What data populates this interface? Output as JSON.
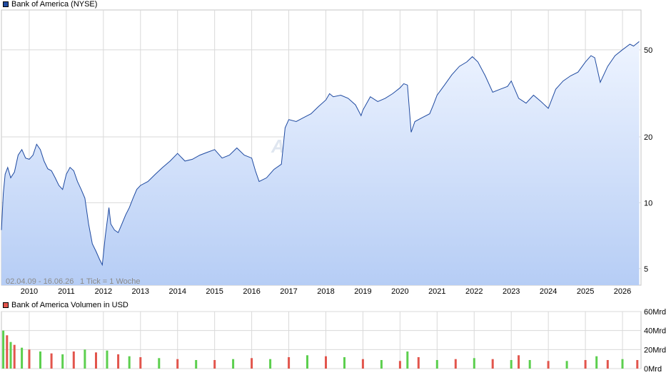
{
  "colors": {
    "price_line": "#1f4aa0",
    "area_top": "#eef4ff",
    "area_bottom": "#b6cdf5",
    "grid": "#d9d9d9",
    "frame": "#c4c4c4",
    "volume_up": "#5ccf4e",
    "volume_down": "#e2554c",
    "price_swatch": "#1f4aa0",
    "volume_swatch": "#e2554c"
  },
  "legend": {
    "price": "Bank of America (NYSE)",
    "volume": "Bank of America Volumen in USD"
  },
  "footer": {
    "period": "02.04.09 - 16.06.26",
    "tick_info": "1 Tick = 1 Woche"
  },
  "watermark": "ARIVA.DE",
  "chart_data": [
    {
      "type": "line",
      "scale": "log",
      "ylim": [
        4.2,
        76
      ],
      "xlim": [
        2009.25,
        2026.5
      ],
      "yticks": [
        5,
        10,
        20,
        50
      ],
      "ytick_labels": [
        "5",
        "10",
        "20",
        "50"
      ],
      "xticks": [
        2010,
        2011,
        2012,
        2013,
        2014,
        2015,
        2016,
        2017,
        2018,
        2019,
        2020,
        2021,
        2022,
        2023,
        2024,
        2025,
        2026
      ],
      "xtick_labels": [
        "2010",
        "2011",
        "2012",
        "2013",
        "2014",
        "2015",
        "2016",
        "2017",
        "2018",
        "2019",
        "2020",
        "2021",
        "2022",
        "2023",
        "2024",
        "2025",
        "2026"
      ],
      "series": [
        {
          "x": [
            2009.25,
            2009.3,
            2009.35,
            2009.42,
            2009.5,
            2009.6,
            2009.7,
            2009.8,
            2009.9,
            2010.0,
            2010.1,
            2010.2,
            2010.3,
            2010.4,
            2010.5,
            2010.6,
            2010.7,
            2010.8,
            2010.9,
            2011.0,
            2011.1,
            2011.2,
            2011.3,
            2011.4,
            2011.5,
            2011.6,
            2011.7,
            2011.8,
            2011.9,
            2011.97,
            2012.05,
            2012.15,
            2012.2,
            2012.3,
            2012.4,
            2012.5,
            2012.6,
            2012.7,
            2012.8,
            2012.9,
            2013.0,
            2013.2,
            2013.4,
            2013.6,
            2013.8,
            2014.0,
            2014.2,
            2014.4,
            2014.6,
            2014.8,
            2015.0,
            2015.2,
            2015.4,
            2015.6,
            2015.8,
            2016.0,
            2016.1,
            2016.2,
            2016.4,
            2016.6,
            2016.8,
            2016.9,
            2017.0,
            2017.2,
            2017.4,
            2017.6,
            2017.8,
            2018.0,
            2018.1,
            2018.2,
            2018.4,
            2018.6,
            2018.8,
            2018.95,
            2019.0,
            2019.2,
            2019.4,
            2019.6,
            2019.8,
            2020.0,
            2020.1,
            2020.2,
            2020.3,
            2020.4,
            2020.6,
            2020.8,
            2020.9,
            2021.0,
            2021.2,
            2021.4,
            2021.6,
            2021.8,
            2021.95,
            2022.1,
            2022.3,
            2022.5,
            2022.7,
            2022.9,
            2023.0,
            2023.2,
            2023.4,
            2023.6,
            2023.8,
            2024.0,
            2024.2,
            2024.4,
            2024.6,
            2024.8,
            2025.0,
            2025.15,
            2025.25,
            2025.4,
            2025.6,
            2025.8,
            2026.0,
            2026.2,
            2026.3,
            2026.45
          ],
          "y": [
            7.5,
            11.0,
            13.5,
            14.5,
            13.0,
            13.8,
            16.5,
            17.5,
            16.0,
            15.8,
            16.5,
            18.5,
            17.5,
            15.5,
            14.3,
            14.0,
            13.0,
            12.0,
            11.5,
            13.5,
            14.5,
            14.0,
            12.5,
            11.5,
            10.5,
            8.0,
            6.5,
            6.0,
            5.5,
            5.2,
            7.0,
            9.5,
            8.0,
            7.5,
            7.3,
            8.0,
            8.8,
            9.5,
            10.5,
            11.5,
            12.0,
            12.5,
            13.5,
            14.5,
            15.5,
            16.8,
            15.5,
            15.8,
            16.5,
            17.0,
            17.5,
            16.0,
            16.5,
            17.8,
            16.5,
            16.0,
            14.0,
            12.5,
            13.0,
            14.2,
            15.0,
            22.0,
            24.0,
            23.5,
            24.5,
            25.5,
            27.5,
            29.5,
            31.5,
            30.5,
            31.0,
            30.0,
            28.0,
            25.0,
            26.5,
            30.5,
            29.0,
            30.0,
            31.5,
            33.5,
            35.0,
            34.5,
            21.0,
            23.5,
            24.5,
            25.5,
            28.0,
            31.0,
            34.5,
            38.5,
            42.0,
            44.0,
            46.5,
            44.0,
            38.0,
            32.0,
            33.0,
            34.0,
            36.0,
            30.0,
            28.5,
            31.0,
            29.0,
            27.0,
            33.0,
            36.0,
            38.0,
            39.5,
            44.0,
            47.0,
            46.0,
            35.5,
            42.0,
            47.0,
            50.0,
            53.0,
            52.0,
            54.5
          ]
        }
      ]
    },
    {
      "type": "bar",
      "title": "Bank of America Volumen in USD",
      "ylim": [
        0,
        60
      ],
      "yticks": [
        0,
        20,
        40,
        60
      ],
      "ytick_labels": [
        "0Mrd",
        "20Mrd",
        "40Mrd",
        "60Mrd"
      ],
      "series": [
        {
          "name": "Volumen",
          "x": [
            2009.3,
            2009.4,
            2009.5,
            2009.6,
            2009.8,
            2010.0,
            2010.3,
            2010.6,
            2010.9,
            2011.2,
            2011.5,
            2011.8,
            2012.1,
            2012.4,
            2012.7,
            2013.0,
            2013.5,
            2014.0,
            2014.5,
            2015.0,
            2015.5,
            2016.0,
            2016.5,
            2017.0,
            2017.5,
            2018.0,
            2018.5,
            2019.0,
            2019.5,
            2020.0,
            2020.2,
            2020.5,
            2021.0,
            2021.5,
            2022.0,
            2022.5,
            2023.0,
            2023.2,
            2023.5,
            2024.0,
            2024.5,
            2025.0,
            2025.3,
            2025.6,
            2026.0,
            2026.4
          ],
          "values": [
            40,
            35,
            28,
            25,
            22,
            20,
            18,
            16,
            15,
            18,
            20,
            17,
            19,
            15,
            13,
            12,
            11,
            10,
            9,
            9,
            10,
            11,
            10,
            12,
            14,
            13,
            12,
            10,
            9,
            8,
            18,
            12,
            9,
            10,
            11,
            10,
            9,
            14,
            9,
            8,
            8,
            9,
            13,
            9,
            10,
            9
          ]
        }
      ]
    }
  ]
}
